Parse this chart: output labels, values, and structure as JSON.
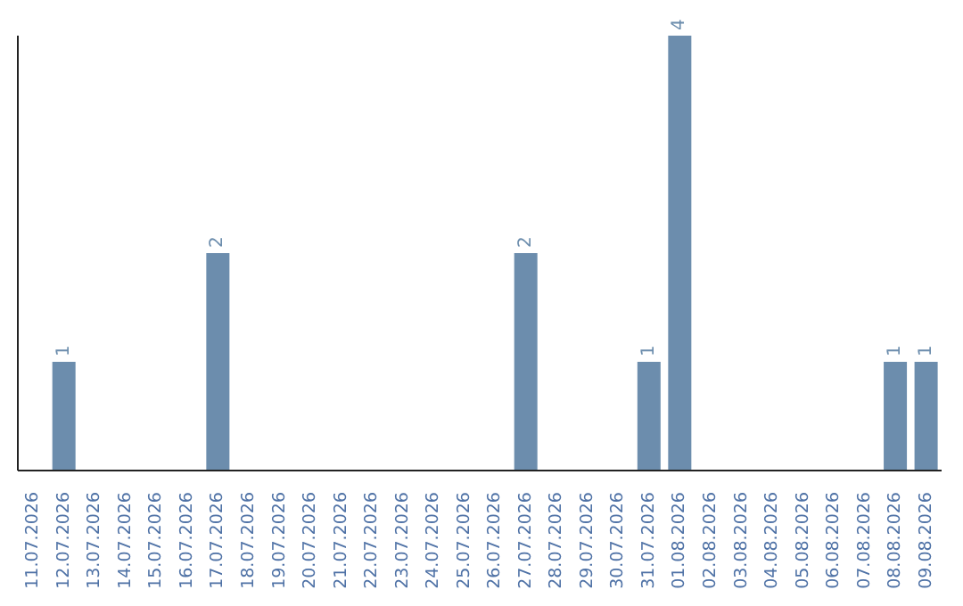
{
  "chart_data": {
    "type": "bar",
    "categories": [
      "11.07.2026",
      "12.07.2026",
      "13.07.2026",
      "14.07.2026",
      "15.07.2026",
      "16.07.2026",
      "17.07.2026",
      "18.07.2026",
      "19.07.2026",
      "20.07.2026",
      "21.07.2026",
      "22.07.2026",
      "23.07.2026",
      "24.07.2026",
      "25.07.2026",
      "26.07.2026",
      "27.07.2026",
      "28.07.2026",
      "29.07.2026",
      "30.07.2026",
      "31.07.2026",
      "01.08.2026",
      "02.08.2026",
      "03.08.2026",
      "04.08.2026",
      "05.08.2026",
      "06.08.2026",
      "07.08.2026",
      "08.08.2026",
      "09.08.2026"
    ],
    "values": [
      0,
      1,
      0,
      0,
      0,
      0,
      2,
      0,
      0,
      0,
      0,
      0,
      0,
      0,
      0,
      0,
      2,
      0,
      0,
      0,
      1,
      4,
      0,
      0,
      0,
      0,
      0,
      0,
      1,
      1
    ],
    "value_labels": [
      null,
      "1",
      null,
      null,
      null,
      null,
      "2",
      null,
      null,
      null,
      null,
      null,
      null,
      null,
      null,
      null,
      "2",
      null,
      null,
      null,
      "1",
      "4",
      null,
      null,
      null,
      null,
      null,
      null,
      "1",
      "1"
    ],
    "color": "#6c8dad",
    "tick_labels": "x"
  }
}
